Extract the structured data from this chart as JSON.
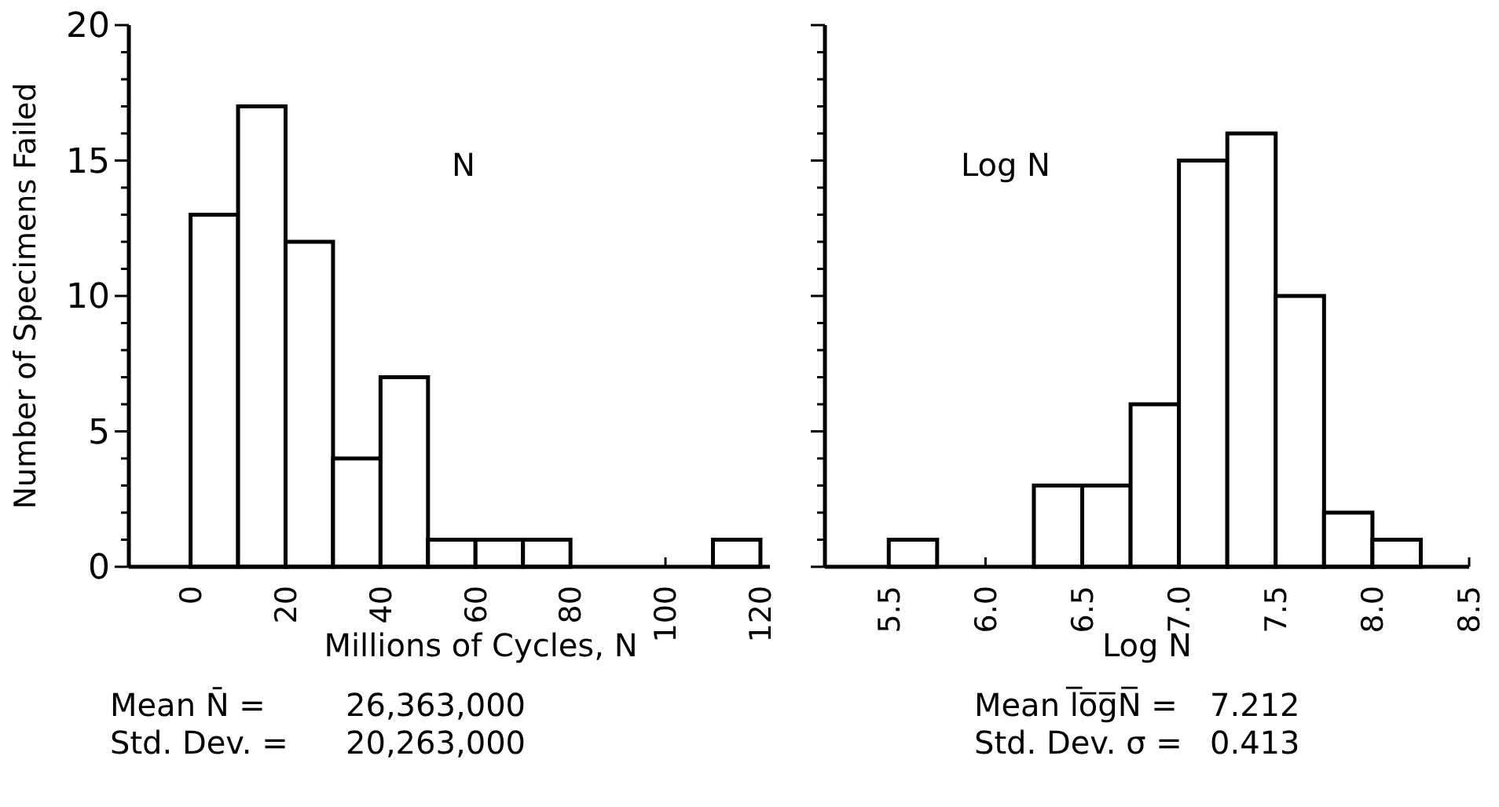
{
  "chart_data": [
    {
      "type": "histogram",
      "bins": [
        0,
        10,
        20,
        30,
        40,
        50,
        60,
        70,
        80,
        90,
        100,
        110,
        120
      ],
      "values": [
        13,
        17,
        12,
        4,
        7,
        1,
        1,
        1,
        0,
        0,
        0,
        1
      ],
      "color": "#ffffff",
      "xlim": [
        -13,
        122
      ],
      "ylim": [
        0,
        20
      ],
      "xticks": [
        0,
        20,
        40,
        60,
        80,
        100,
        120
      ],
      "yticks": [
        0,
        {
          "value": 1,
          "label": null
        },
        {
          "value": 2,
          "label": null
        },
        {
          "value": 3,
          "label": null
        },
        {
          "value": 4,
          "label": null
        },
        5,
        {
          "value": 6,
          "label": null
        },
        {
          "value": 7,
          "label": null
        },
        {
          "value": 8,
          "label": null
        },
        {
          "value": 9,
          "label": null
        },
        10,
        {
          "value": 11,
          "label": null
        },
        {
          "value": 12,
          "label": null
        },
        {
          "value": 13,
          "label": null
        },
        {
          "value": 14,
          "label": null
        },
        15,
        {
          "value": 16,
          "label": null
        },
        {
          "value": 17,
          "label": null
        },
        {
          "value": 18,
          "label": null
        },
        {
          "value": 19,
          "label": null
        },
        20
      ],
      "xlabel": "Millions of Cycles, N",
      "ylabel": "Number of Specimens Failed",
      "annotations": [
        "N",
        "Mean N̄ =",
        "26,363,000",
        "Std. Dev. =",
        "20,263,000"
      ]
    },
    {
      "type": "histogram",
      "bins": [
        5.5,
        5.75,
        6.0,
        6.25,
        6.5,
        6.75,
        7.0,
        7.25,
        7.5,
        7.75,
        8.0,
        8.25
      ],
      "values": [
        1,
        0,
        0,
        3,
        3,
        6,
        15,
        16,
        10,
        2,
        1
      ],
      "color": "#ffffff",
      "xlim": [
        5.17,
        8.5
      ],
      "ylim": [
        0,
        20
      ],
      "xticks": [
        5.5,
        {
          "value": 6,
          "label": "6.0"
        },
        6.5,
        {
          "value": 7,
          "label": "7.0"
        },
        7.5,
        {
          "value": 8,
          "label": "8.0"
        },
        8.5
      ],
      "yticks": [
        0,
        {
          "value": 1,
          "label": null
        },
        {
          "value": 2,
          "label": null
        },
        {
          "value": 3,
          "label": null
        },
        {
          "value": 4,
          "label": null
        },
        5,
        {
          "value": 6,
          "label": null
        },
        {
          "value": 7,
          "label": null
        },
        {
          "value": 8,
          "label": null
        },
        {
          "value": 9,
          "label": null
        },
        10,
        {
          "value": 11,
          "label": null
        },
        {
          "value": 12,
          "label": null
        },
        {
          "value": 13,
          "label": null
        },
        {
          "value": 14,
          "label": null
        },
        15,
        {
          "value": 16,
          "label": null
        },
        {
          "value": 17,
          "label": null
        },
        {
          "value": 18,
          "label": null
        },
        {
          "value": 19,
          "label": null
        },
        20
      ],
      "tick_labels": "x",
      "xlabel": "Log N",
      "annotations": [
        "Log N",
        "Mean l̅o̅g̅N̅ =",
        "7.212",
        "Std. Dev. σ =",
        "0.413"
      ]
    }
  ]
}
